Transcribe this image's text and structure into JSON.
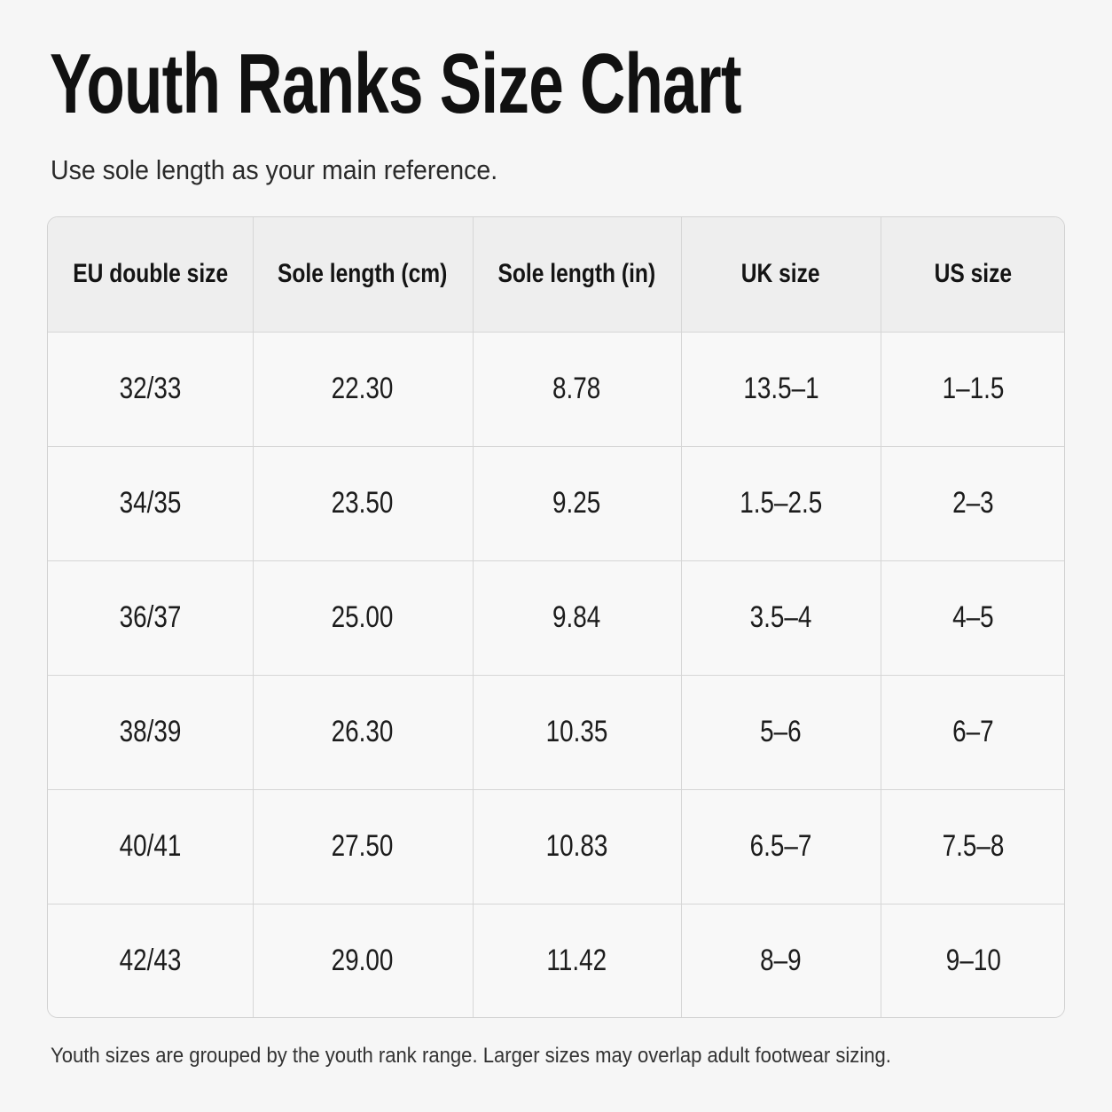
{
  "title": "Youth Ranks Size Chart",
  "subtitle": "Use sole length as your main reference.",
  "table": {
    "headers": [
      "EU double size",
      "Sole length (cm)",
      "Sole length (in)",
      "UK size",
      "US size"
    ],
    "rows": [
      [
        "32/33",
        "22.30",
        "8.78",
        "13.5–1",
        "1–1.5"
      ],
      [
        "34/35",
        "23.50",
        "9.25",
        "1.5–2.5",
        "2–3"
      ],
      [
        "36/37",
        "25.00",
        "9.84",
        "3.5–4",
        "4–5"
      ],
      [
        "38/39",
        "26.30",
        "10.35",
        "5–6",
        "6–7"
      ],
      [
        "40/41",
        "27.50",
        "10.83",
        "6.5–7",
        "7.5–8"
      ],
      [
        "42/43",
        "29.00",
        "11.42",
        "8–9",
        "9–10"
      ]
    ]
  },
  "footnote": "Youth sizes are grouped by the youth rank range. Larger sizes may overlap adult footwear sizing."
}
